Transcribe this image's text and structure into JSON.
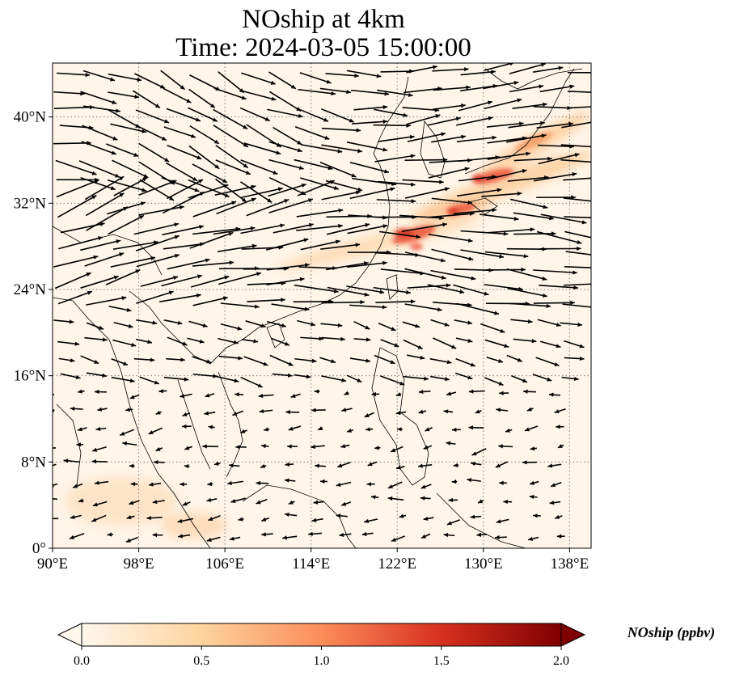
{
  "title": "NOship at 4km",
  "subtitle": "Time: 2024-03-05 15:00:00",
  "map": {
    "lon_range": [
      90,
      140
    ],
    "lat_range": [
      0,
      45
    ],
    "x_ticks": [
      "90°E",
      "98°E",
      "106°E",
      "114°E",
      "122°E",
      "130°E",
      "138°E"
    ],
    "x_tick_values": [
      90,
      98,
      106,
      114,
      122,
      130,
      138
    ],
    "y_ticks": [
      "0°",
      "8°N",
      "16°N",
      "24°N",
      "32°N",
      "40°N"
    ],
    "y_tick_values": [
      0,
      8,
      16,
      24,
      32,
      40
    ],
    "gridlines": true
  },
  "colorbar": {
    "label": "NOship (ppbv)",
    "ticks": [
      "0.0",
      "0.5",
      "1.0",
      "1.5",
      "2.0"
    ],
    "tick_values": [
      0.0,
      0.5,
      1.0,
      1.5,
      2.0
    ],
    "range": [
      0.0,
      2.0
    ],
    "colormap": "OrRd",
    "colors": [
      "#fff7ec",
      "#fdd49e",
      "#fc8d59",
      "#d7301f",
      "#7f0000"
    ]
  },
  "colors": {
    "frame": "#000000",
    "grid": "#7a7a7a",
    "coast": "#000000",
    "arrow": "#000000"
  }
}
